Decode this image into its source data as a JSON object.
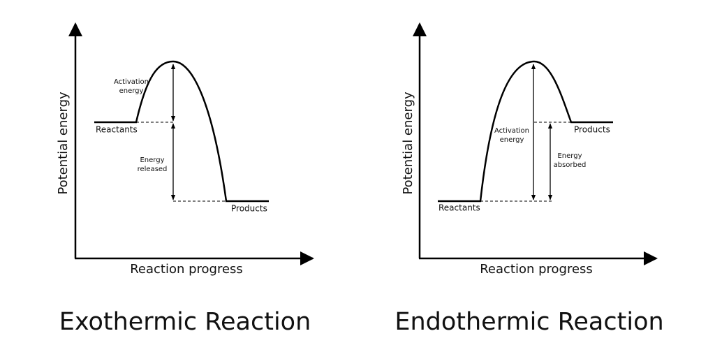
{
  "exothermic": {
    "title": "Exothermic Reaction",
    "x_axis": "Reaction progress",
    "y_axis": "Potential energy",
    "reactants": "Reactants",
    "products": "Products",
    "activation_energy": [
      "Activation",
      "energy"
    ],
    "energy_change": [
      "Energy",
      "released"
    ]
  },
  "endothermic": {
    "title": "Endothermic Reaction",
    "x_axis": "Reaction progress",
    "y_axis": "Potential energy",
    "reactants": "Reactants",
    "products": "Products",
    "activation_energy": [
      "Activation",
      "energy"
    ],
    "energy_change": [
      "Energy",
      "absorbed"
    ]
  }
}
